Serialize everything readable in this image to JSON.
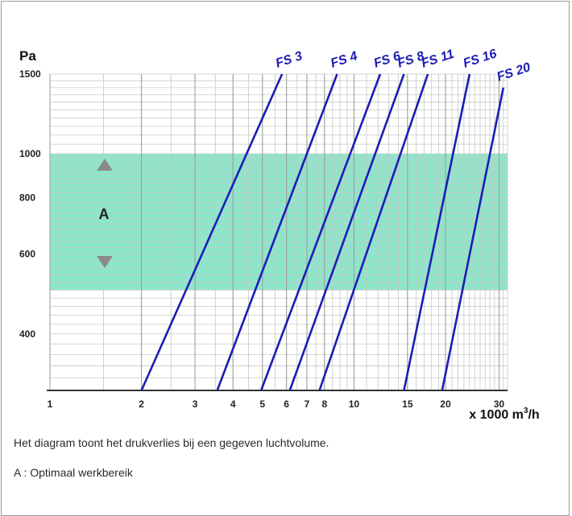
{
  "chart_data": {
    "type": "line",
    "title": "",
    "ylabel": "Pa",
    "xlabel_main": "x 1000 m",
    "xlabel_sup": "3",
    "xlabel_end": "/h",
    "x_scale": "log",
    "y_scale": "log",
    "xlim": [
      1,
      32
    ],
    "ylim": [
      300,
      1500
    ],
    "x_ticks": [
      {
        "value": 1,
        "label": "1"
      },
      {
        "value": 2,
        "label": "2"
      },
      {
        "value": 3,
        "label": "3"
      },
      {
        "value": 4,
        "label": "4"
      },
      {
        "value": 5,
        "label": "5"
      },
      {
        "value": 6,
        "label": "6"
      },
      {
        "value": 7,
        "label": "7"
      },
      {
        "value": 8,
        "label": "8"
      },
      {
        "value": 10,
        "label": "10"
      },
      {
        "value": 15,
        "label": "15"
      },
      {
        "value": 20,
        "label": "20"
      },
      {
        "value": 30,
        "label": "30"
      }
    ],
    "y_ticks": [
      {
        "value": 1500,
        "label": "1500"
      },
      {
        "value": 1000,
        "label": "1000"
      },
      {
        "value": 800,
        "label": "800"
      },
      {
        "value": 600,
        "label": "600"
      },
      {
        "value": 400,
        "label": "400"
      }
    ],
    "grid": true,
    "zone": {
      "label": "A",
      "y_range": [
        500,
        1000
      ],
      "color": "#7fe3c4"
    },
    "series": [
      {
        "name": "FS 3",
        "x": [
          2.0,
          5.8
        ],
        "y": [
          300,
          1500
        ]
      },
      {
        "name": "FS 4",
        "x": [
          3.55,
          8.8
        ],
        "y": [
          300,
          1500
        ]
      },
      {
        "name": "FS 6",
        "x": [
          4.95,
          12.2
        ],
        "y": [
          300,
          1500
        ]
      },
      {
        "name": "FS 8",
        "x": [
          6.15,
          14.6
        ],
        "y": [
          300,
          1500
        ]
      },
      {
        "name": "FS 11",
        "x": [
          7.7,
          17.5
        ],
        "y": [
          300,
          1500
        ]
      },
      {
        "name": "FS 16",
        "x": [
          14.6,
          24.0
        ],
        "y": [
          300,
          1500
        ]
      },
      {
        "name": "FS 20",
        "x": [
          19.5,
          31.0
        ],
        "y": [
          300,
          1400
        ]
      }
    ],
    "line_color": "#1c1cb4"
  },
  "caption": {
    "line1": "Het diagram toont het drukverlies bij een gegeven luchtvolume.",
    "line2": "A : Optimaal werkbereik"
  }
}
